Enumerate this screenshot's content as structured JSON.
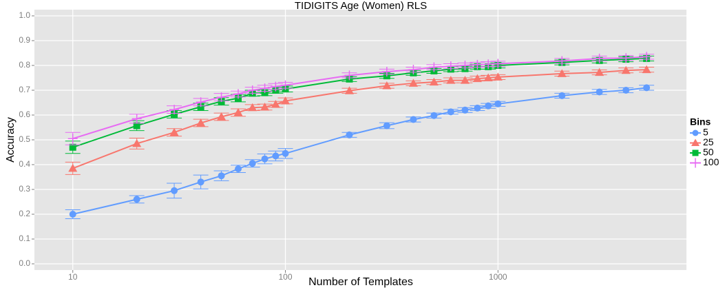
{
  "chart_data": {
    "type": "line",
    "title": "TIDIGITS Age (Women) RLS",
    "x_label": "Number of Templates",
    "y_label": "Accuracy",
    "x": [
      10,
      20,
      30,
      40,
      50,
      60,
      70,
      80,
      90,
      100,
      200,
      300,
      400,
      500,
      600,
      700,
      800,
      900,
      1000,
      2000,
      3000,
      4000,
      5000
    ],
    "log_x": true,
    "xlim": [
      6.6,
      7700
    ],
    "xticks": [
      10,
      100,
      1000
    ],
    "ylim": [
      -0.025,
      1.025
    ],
    "yticks": [
      {
        "value": 0,
        "label": "0.0"
      },
      0.1,
      0.2,
      0.3,
      0.4,
      0.5,
      0.6,
      0.7,
      0.8,
      0.9,
      {
        "value": 1,
        "label": "1.0"
      }
    ],
    "grid": true,
    "legend_title": "Bins",
    "legend_position": "right",
    "series": [
      {
        "name": "5",
        "color": "#619CFF",
        "shape": "circle",
        "values": [
          0.2,
          0.26,
          0.295,
          0.33,
          0.355,
          0.383,
          0.405,
          0.423,
          0.435,
          0.445,
          0.52,
          0.557,
          0.582,
          0.598,
          0.613,
          0.62,
          0.628,
          0.637,
          0.645,
          0.678,
          0.693,
          0.7,
          0.71
        ],
        "errors": [
          0.018,
          0.015,
          0.03,
          0.028,
          0.02,
          0.015,
          0.015,
          0.02,
          0.02,
          0.02,
          0.01,
          0.012,
          0.01,
          0.01,
          0.01,
          0.01,
          0.01,
          0.01,
          0.01,
          0.01,
          0.01,
          0.01,
          0.01
        ]
      },
      {
        "name": "25",
        "color": "#F8766D",
        "shape": "triangle",
        "values": [
          0.385,
          0.485,
          0.53,
          0.568,
          0.593,
          0.61,
          0.63,
          0.632,
          0.643,
          0.657,
          0.698,
          0.718,
          0.728,
          0.733,
          0.74,
          0.74,
          0.747,
          0.75,
          0.753,
          0.767,
          0.772,
          0.78,
          0.783
        ],
        "errors": [
          0.025,
          0.022,
          0.015,
          0.015,
          0.015,
          0.015,
          0.012,
          0.012,
          0.012,
          0.012,
          0.01,
          0.01,
          0.01,
          0.01,
          0.01,
          0.01,
          0.01,
          0.01,
          0.01,
          0.01,
          0.01,
          0.01,
          0.01
        ]
      },
      {
        "name": "50",
        "color": "#00BA38",
        "shape": "square",
        "values": [
          0.47,
          0.557,
          0.603,
          0.633,
          0.655,
          0.668,
          0.688,
          0.69,
          0.7,
          0.705,
          0.745,
          0.758,
          0.77,
          0.778,
          0.785,
          0.787,
          0.795,
          0.795,
          0.8,
          0.812,
          0.82,
          0.825,
          0.828
        ],
        "errors": [
          0.025,
          0.02,
          0.015,
          0.015,
          0.015,
          0.015,
          0.012,
          0.012,
          0.012,
          0.012,
          0.01,
          0.01,
          0.01,
          0.01,
          0.01,
          0.01,
          0.01,
          0.01,
          0.01,
          0.01,
          0.01,
          0.01,
          0.01
        ]
      },
      {
        "name": "100",
        "color": "#E76BF3",
        "shape": "plus",
        "values": [
          0.505,
          0.585,
          0.622,
          0.652,
          0.672,
          0.685,
          0.7,
          0.708,
          0.715,
          0.72,
          0.76,
          0.775,
          0.783,
          0.793,
          0.797,
          0.8,
          0.803,
          0.805,
          0.807,
          0.818,
          0.828,
          0.83,
          0.835
        ],
        "errors": [
          0.025,
          0.018,
          0.015,
          0.015,
          0.015,
          0.012,
          0.012,
          0.012,
          0.012,
          0.012,
          0.01,
          0.01,
          0.01,
          0.01,
          0.01,
          0.01,
          0.01,
          0.01,
          0.01,
          0.01,
          0.01,
          0.01,
          0.01
        ]
      }
    ]
  }
}
